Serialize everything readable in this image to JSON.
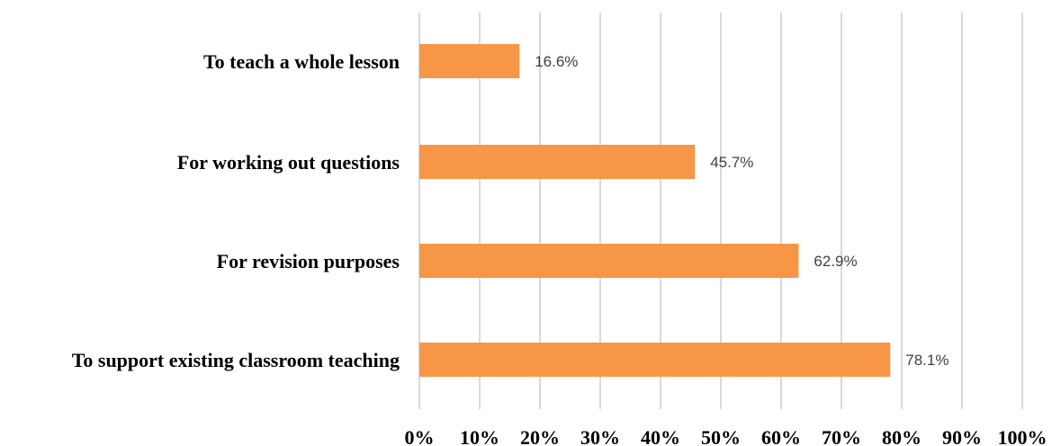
{
  "chart_data": {
    "type": "bar",
    "orientation": "horizontal",
    "categories": [
      "To teach a whole lesson",
      "For working out questions",
      "For revision purposes",
      "To support existing classroom teaching"
    ],
    "values": [
      16.6,
      45.7,
      62.9,
      78.1
    ],
    "data_labels": [
      "16.6%",
      "45.7%",
      "62.9%",
      "78.1%"
    ],
    "xlim": [
      0,
      100
    ],
    "x_ticks": [
      "0%",
      "10%",
      "20%",
      "30%",
      "40%",
      "50%",
      "60%",
      "70%",
      "80%",
      "90%",
      "100%"
    ],
    "grid": "vertical",
    "legend": "none",
    "bar_color": "#f79646"
  }
}
